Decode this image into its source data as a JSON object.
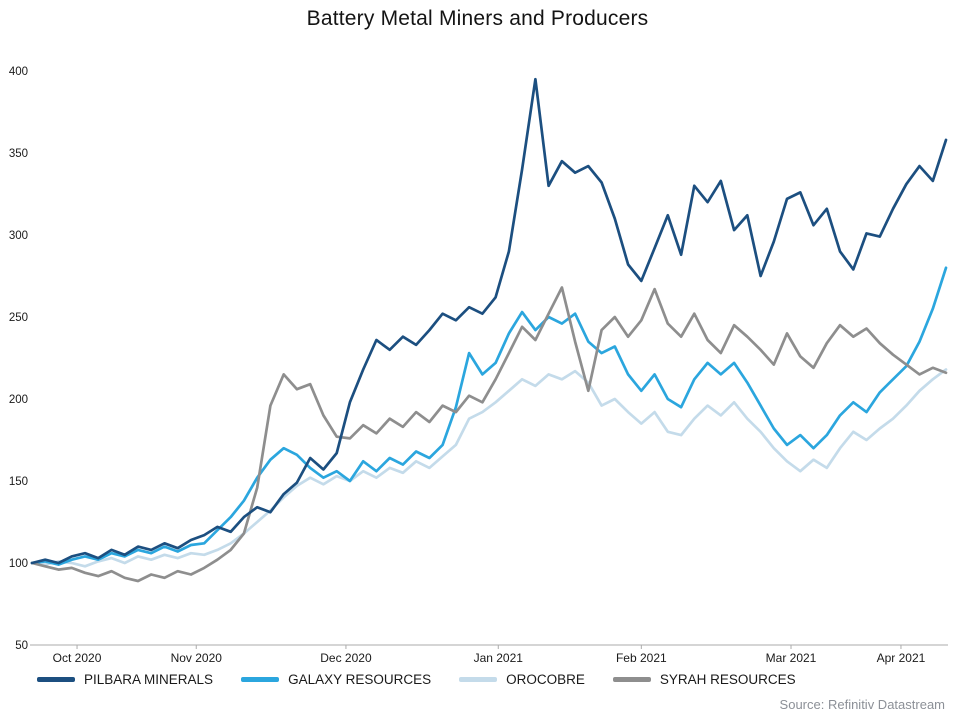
{
  "source": "Source: Refinitiv Datastream",
  "chart_data": {
    "type": "line",
    "title": "Battery Metal Miners and Producers",
    "xlabel": "",
    "ylabel": "",
    "ylim": [
      50,
      400
    ],
    "y_ticks": [
      50,
      100,
      150,
      200,
      250,
      300,
      350,
      400
    ],
    "grid": false,
    "legend_position": "bottom",
    "x_tick_labels": [
      "Oct 2020",
      "Nov 2020",
      "Dec 2020",
      "Jan 2021",
      "Feb 2021",
      "Mar 2021",
      "Apr 2021"
    ],
    "x_tick_indices": [
      3.4,
      12.4,
      23.7,
      35.2,
      46.0,
      57.3,
      65.6
    ],
    "series": [
      {
        "name": "PILBARA MINERALS",
        "color": "#1C4F80",
        "values": [
          100,
          102,
          100,
          104,
          106,
          103,
          108,
          105,
          110,
          108,
          112,
          109,
          114,
          117,
          122,
          119,
          128,
          134,
          131,
          142,
          149,
          164,
          157,
          167,
          198,
          218,
          236,
          230,
          238,
          233,
          242,
          252,
          248,
          256,
          252,
          262,
          290,
          340,
          395,
          330,
          345,
          338,
          342,
          332,
          310,
          282,
          272,
          292,
          312,
          288,
          330,
          320,
          333,
          303,
          312,
          275,
          296,
          322,
          326,
          306,
          316,
          290,
          279,
          301,
          299,
          316,
          331,
          342,
          333,
          358
        ]
      },
      {
        "name": "GALAXY RESOURCES",
        "color": "#2BA6DE",
        "values": [
          100,
          101,
          99,
          102,
          104,
          102,
          106,
          104,
          108,
          106,
          110,
          107,
          111,
          112,
          120,
          128,
          138,
          152,
          163,
          170,
          166,
          158,
          152,
          156,
          150,
          162,
          156,
          164,
          160,
          168,
          164,
          172,
          195,
          228,
          215,
          222,
          240,
          253,
          242,
          250,
          246,
          252,
          235,
          228,
          232,
          215,
          205,
          215,
          200,
          195,
          212,
          222,
          215,
          222,
          210,
          196,
          182,
          172,
          178,
          170,
          178,
          190,
          198,
          192,
          204,
          212,
          220,
          235,
          255,
          280
        ]
      },
      {
        "name": "OROCOBRE",
        "color": "#C4DBEA",
        "values": [
          100,
          99,
          101,
          100,
          98,
          101,
          103,
          100,
          104,
          102,
          105,
          103,
          106,
          105,
          108,
          112,
          118,
          125,
          132,
          140,
          147,
          152,
          148,
          153,
          150,
          156,
          152,
          158,
          155,
          162,
          158,
          165,
          172,
          188,
          192,
          198,
          205,
          212,
          208,
          215,
          212,
          217,
          210,
          196,
          200,
          192,
          185,
          192,
          180,
          178,
          188,
          196,
          190,
          198,
          188,
          180,
          170,
          162,
          156,
          163,
          158,
          170,
          180,
          175,
          182,
          188,
          196,
          205,
          212,
          218
        ]
      },
      {
        "name": "SYRAH RESOURCES",
        "color": "#8E8E8E",
        "values": [
          100,
          98,
          96,
          97,
          94,
          92,
          95,
          91,
          89,
          93,
          91,
          95,
          93,
          97,
          102,
          108,
          118,
          146,
          196,
          215,
          206,
          209,
          190,
          177,
          176,
          184,
          179,
          188,
          183,
          192,
          186,
          196,
          192,
          202,
          198,
          212,
          228,
          244,
          236,
          252,
          268,
          235,
          205,
          242,
          250,
          238,
          248,
          267,
          246,
          238,
          252,
          236,
          228,
          245,
          238,
          230,
          221,
          240,
          226,
          219,
          234,
          245,
          238,
          243,
          234,
          227,
          221,
          215,
          219,
          216
        ]
      }
    ]
  }
}
